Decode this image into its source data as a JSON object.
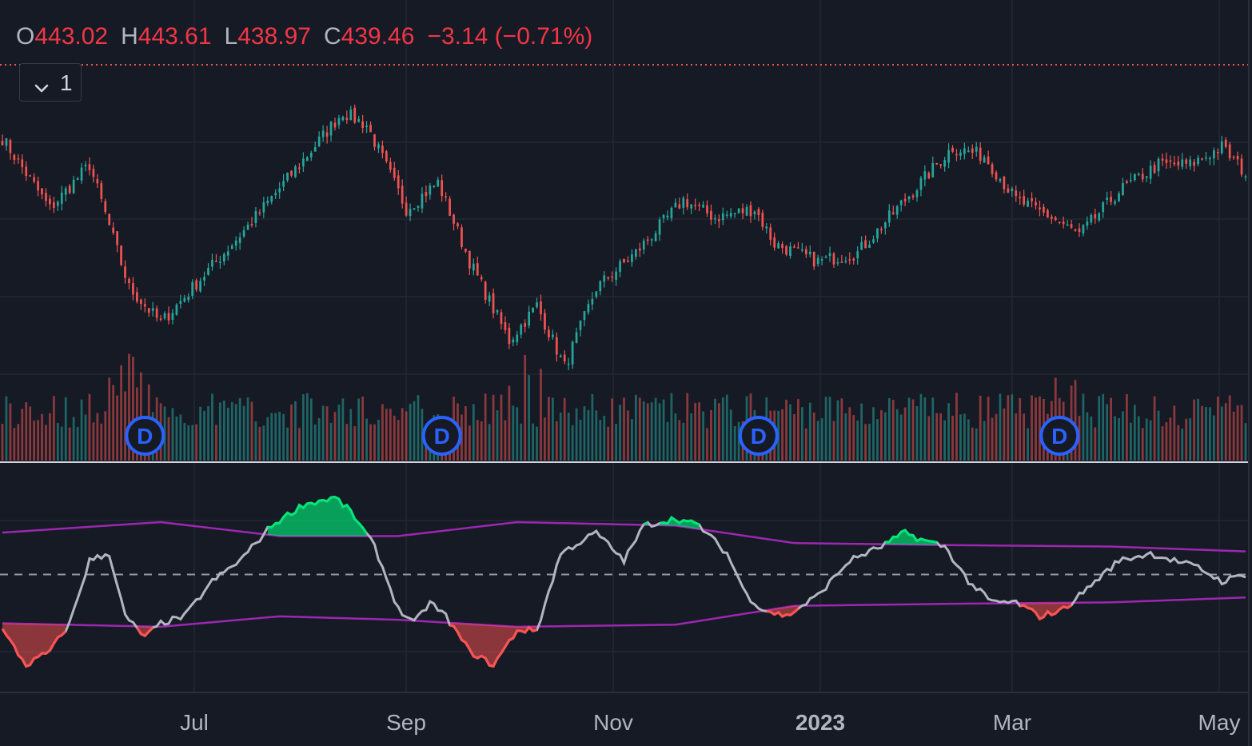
{
  "header": {
    "open_label": "O",
    "open_value": "443.02",
    "high_label": "H",
    "high_value": "443.61",
    "low_label": "L",
    "low_value": "438.97",
    "close_label": "C",
    "close_value": "439.46",
    "change": "−3.14 (−0.71%)",
    "collapsed_count": "1",
    "toggle_icon": "chevron-down-icon"
  },
  "colors": {
    "background": "#161a25",
    "up": "#26a69a",
    "down": "#ef5350",
    "band": "#9c27b0",
    "line": "#b2b5be",
    "overbought": "#00e676",
    "oversold": "#ff5252",
    "marker": "#2962ff"
  },
  "chart_data": [
    {
      "type": "candlestick",
      "period": "daily",
      "x_ticks": [
        "Jul",
        "Sep",
        "Nov",
        "2023",
        "Mar",
        "May"
      ],
      "last_bar": {
        "open": 443.02,
        "high": 443.61,
        "low": 438.97,
        "close": 439.46,
        "change": -3.14,
        "change_pct": -0.71
      },
      "close_path": [
        {
          "t": 0,
          "v": 452
        },
        {
          "t": 12,
          "v": 436
        },
        {
          "t": 22,
          "v": 446
        },
        {
          "t": 32,
          "v": 418
        },
        {
          "t": 40,
          "v": 410
        },
        {
          "t": 50,
          "v": 420
        },
        {
          "t": 62,
          "v": 432
        },
        {
          "t": 75,
          "v": 446
        },
        {
          "t": 86,
          "v": 458
        },
        {
          "t": 92,
          "v": 455
        },
        {
          "t": 102,
          "v": 436
        },
        {
          "t": 110,
          "v": 442
        },
        {
          "t": 118,
          "v": 424
        },
        {
          "t": 128,
          "v": 406
        },
        {
          "t": 135,
          "v": 414
        },
        {
          "t": 142,
          "v": 400
        },
        {
          "t": 150,
          "v": 418
        },
        {
          "t": 160,
          "v": 426
        },
        {
          "t": 172,
          "v": 438
        },
        {
          "t": 180,
          "v": 434
        },
        {
          "t": 190,
          "v": 436
        },
        {
          "t": 195,
          "v": 428
        },
        {
          "t": 206,
          "v": 424
        },
        {
          "t": 216,
          "v": 426
        },
        {
          "t": 230,
          "v": 440
        },
        {
          "t": 240,
          "v": 450
        },
        {
          "t": 248,
          "v": 448
        },
        {
          "t": 256,
          "v": 438
        },
        {
          "t": 265,
          "v": 434
        },
        {
          "t": 272,
          "v": 430
        },
        {
          "t": 282,
          "v": 440
        },
        {
          "t": 292,
          "v": 446
        },
        {
          "t": 300,
          "v": 446
        },
        {
          "t": 308,
          "v": 450
        },
        {
          "t": 314,
          "v": 444
        }
      ],
      "volume_spikes": [
        32,
        132,
        268
      ],
      "dividend_markers": [
        "D",
        "D",
        "D",
        "D"
      ],
      "dividend_bars": [
        36,
        111,
        191,
        267
      ]
    },
    {
      "type": "line",
      "name": "oscillator with envelope bands",
      "osc_path": [
        {
          "t": 0,
          "v": -0.8
        },
        {
          "t": 6,
          "v": -1.3
        },
        {
          "t": 12,
          "v": -1.1
        },
        {
          "t": 17,
          "v": -0.7
        },
        {
          "t": 22,
          "v": 0.2
        },
        {
          "t": 27,
          "v": 0.3
        },
        {
          "t": 31,
          "v": -0.6
        },
        {
          "t": 36,
          "v": -0.9
        },
        {
          "t": 40,
          "v": -0.7
        },
        {
          "t": 46,
          "v": -0.6
        },
        {
          "t": 53,
          "v": -0.1
        },
        {
          "t": 60,
          "v": 0.2
        },
        {
          "t": 68,
          "v": 0.7
        },
        {
          "t": 76,
          "v": 1.0
        },
        {
          "t": 84,
          "v": 1.1
        },
        {
          "t": 88,
          "v": 0.9
        },
        {
          "t": 94,
          "v": 0.4
        },
        {
          "t": 100,
          "v": -0.5
        },
        {
          "t": 104,
          "v": -0.7
        },
        {
          "t": 108,
          "v": -0.4
        },
        {
          "t": 112,
          "v": -0.6
        },
        {
          "t": 118,
          "v": -1.1
        },
        {
          "t": 124,
          "v": -1.3
        },
        {
          "t": 130,
          "v": -0.8
        },
        {
          "t": 135,
          "v": -0.8
        },
        {
          "t": 141,
          "v": 0.3
        },
        {
          "t": 150,
          "v": 0.6
        },
        {
          "t": 157,
          "v": 0.2
        },
        {
          "t": 162,
          "v": 0.7
        },
        {
          "t": 170,
          "v": 0.8
        },
        {
          "t": 176,
          "v": 0.7
        },
        {
          "t": 183,
          "v": 0.3
        },
        {
          "t": 188,
          "v": -0.3
        },
        {
          "t": 192,
          "v": -0.5
        },
        {
          "t": 198,
          "v": -0.6
        },
        {
          "t": 206,
          "v": -0.3
        },
        {
          "t": 214,
          "v": 0.2
        },
        {
          "t": 222,
          "v": 0.4
        },
        {
          "t": 228,
          "v": 0.6
        },
        {
          "t": 232,
          "v": 0.5
        },
        {
          "t": 238,
          "v": 0.4
        },
        {
          "t": 244,
          "v": -0.1
        },
        {
          "t": 250,
          "v": -0.4
        },
        {
          "t": 256,
          "v": -0.4
        },
        {
          "t": 262,
          "v": -0.6
        },
        {
          "t": 268,
          "v": -0.5
        },
        {
          "t": 274,
          "v": -0.2
        },
        {
          "t": 282,
          "v": 0.2
        },
        {
          "t": 290,
          "v": 0.3
        },
        {
          "t": 296,
          "v": 0.2
        },
        {
          "t": 302,
          "v": 0.1
        },
        {
          "t": 308,
          "v": -0.1
        },
        {
          "t": 314,
          "v": 0.0
        }
      ],
      "upper_band_path": [
        {
          "t": 0,
          "v": 0.6
        },
        {
          "t": 40,
          "v": 0.75
        },
        {
          "t": 70,
          "v": 0.55
        },
        {
          "t": 100,
          "v": 0.55
        },
        {
          "t": 130,
          "v": 0.75
        },
        {
          "t": 170,
          "v": 0.7
        },
        {
          "t": 200,
          "v": 0.45
        },
        {
          "t": 240,
          "v": 0.42
        },
        {
          "t": 280,
          "v": 0.4
        },
        {
          "t": 314,
          "v": 0.33
        }
      ],
      "lower_band_path": [
        {
          "t": 0,
          "v": -0.7
        },
        {
          "t": 40,
          "v": -0.75
        },
        {
          "t": 70,
          "v": -0.6
        },
        {
          "t": 100,
          "v": -0.65
        },
        {
          "t": 130,
          "v": -0.75
        },
        {
          "t": 170,
          "v": -0.72
        },
        {
          "t": 200,
          "v": -0.45
        },
        {
          "t": 240,
          "v": -0.42
        },
        {
          "t": 280,
          "v": -0.4
        },
        {
          "t": 314,
          "v": -0.33
        }
      ],
      "zero_line": 0
    }
  ]
}
